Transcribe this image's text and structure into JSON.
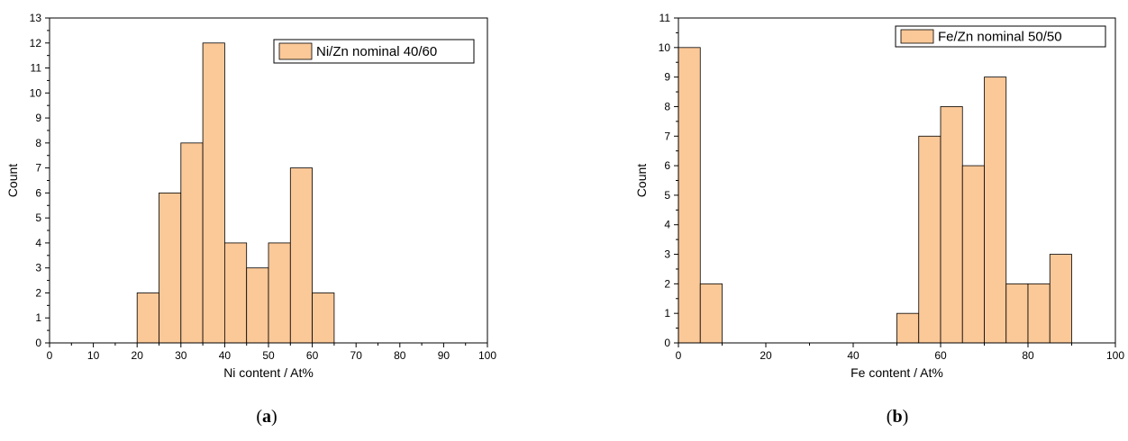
{
  "chart_data": [
    {
      "type": "bar",
      "panel_label": {
        "open": "(",
        "letter": "a",
        "close": ")"
      },
      "xlabel": "Ni content / At%",
      "ylabel": "Count",
      "xlim": [
        0,
        100
      ],
      "ylim": [
        0,
        13
      ],
      "xticks": [
        0,
        10,
        20,
        30,
        40,
        50,
        60,
        70,
        80,
        90,
        100
      ],
      "yticks": [
        0,
        1,
        2,
        3,
        4,
        5,
        6,
        7,
        8,
        9,
        10,
        11,
        12,
        13
      ],
      "bin_width": 5,
      "bins": [
        {
          "start": 20,
          "end": 25,
          "count": 2
        },
        {
          "start": 25,
          "end": 30,
          "count": 6
        },
        {
          "start": 30,
          "end": 35,
          "count": 8
        },
        {
          "start": 35,
          "end": 40,
          "count": 12
        },
        {
          "start": 40,
          "end": 45,
          "count": 4
        },
        {
          "start": 45,
          "end": 50,
          "count": 3
        },
        {
          "start": 50,
          "end": 55,
          "count": 4
        },
        {
          "start": 55,
          "end": 60,
          "count": 7
        },
        {
          "start": 60,
          "end": 65,
          "count": 2
        }
      ],
      "legend": "Ni/Zn  nominal 40/60",
      "legend_position": "top-right",
      "bar_color": "#fbc898",
      "edge_color": "#000000"
    },
    {
      "type": "bar",
      "panel_label": {
        "open": "(",
        "letter": "b",
        "close": ")"
      },
      "xlabel": "Fe content / At%",
      "ylabel": "Count",
      "xlim": [
        0,
        100
      ],
      "ylim": [
        0,
        11
      ],
      "xticks": [
        0,
        20,
        40,
        60,
        80,
        100
      ],
      "yticks": [
        0,
        1,
        2,
        3,
        4,
        5,
        6,
        7,
        8,
        9,
        10,
        11
      ],
      "bin_width": 5,
      "bins": [
        {
          "start": 0,
          "end": 5,
          "count": 10
        },
        {
          "start": 5,
          "end": 10,
          "count": 2
        },
        {
          "start": 50,
          "end": 55,
          "count": 1
        },
        {
          "start": 55,
          "end": 60,
          "count": 7
        },
        {
          "start": 60,
          "end": 65,
          "count": 8
        },
        {
          "start": 65,
          "end": 70,
          "count": 6
        },
        {
          "start": 70,
          "end": 75,
          "count": 9
        },
        {
          "start": 75,
          "end": 80,
          "count": 2
        },
        {
          "start": 80,
          "end": 85,
          "count": 2
        },
        {
          "start": 85,
          "end": 90,
          "count": 3
        }
      ],
      "legend": "Fe/Zn nominal 50/50",
      "legend_position": "top-right",
      "bar_color": "#fbc898",
      "edge_color": "#000000"
    }
  ]
}
